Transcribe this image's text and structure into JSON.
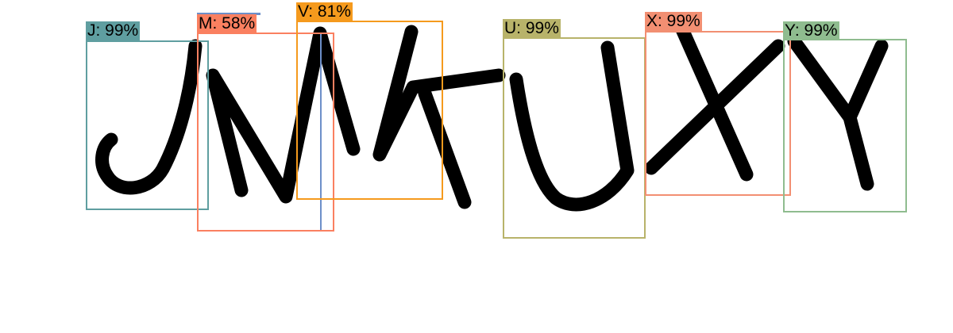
{
  "detections": [
    {
      "label": "J: 99%",
      "color": "#5f9ea0"
    },
    {
      "label": "M: 58%",
      "color": "#fa8060"
    },
    {
      "label": "V: 81%",
      "color": "#f59a1d"
    },
    {
      "label": "U: 99%",
      "color": "#b8b36a"
    },
    {
      "label": "X: 99%",
      "color": "#f28f72"
    },
    {
      "label": "Y: 99%",
      "color": "#8fbc8f"
    }
  ],
  "extra_box": {
    "color": "#6d8fc9"
  }
}
